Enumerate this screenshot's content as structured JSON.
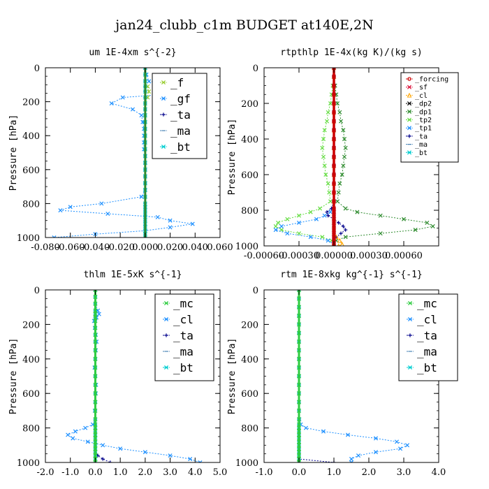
{
  "figure": {
    "suptitle": "jan24_clubb_c1m  BUDGET at140E,2N"
  },
  "chart_data": [
    {
      "type": "line",
      "title": "um  1E-4xm s^{-2}",
      "ylabel": "Pressure [hPa]",
      "xlim": [
        -0.08,
        0.06
      ],
      "ylim": [
        1000,
        0
      ],
      "xticks": [
        -0.08,
        -0.06,
        -0.04,
        -0.02,
        0.0,
        0.02,
        0.04,
        0.06
      ],
      "xticklabels": [
        "-0.080",
        "-0.060",
        "-0.040",
        "-0.020",
        "0.000",
        "0.020",
        "0.040",
        "0.060"
      ],
      "yticks": [
        0,
        200,
        400,
        600,
        800,
        1000
      ],
      "legend": {
        "position": "top-right",
        "size": "large",
        "entries": [
          "_f",
          "_gf",
          "_ta",
          "_ma",
          "_bt"
        ]
      },
      "y": [
        0,
        40,
        80,
        110,
        140,
        175,
        210,
        245,
        280,
        320,
        360,
        400,
        440,
        480,
        520,
        560,
        600,
        640,
        680,
        720,
        760,
        800,
        820,
        840,
        860,
        880,
        900,
        920,
        940,
        960,
        980,
        1000
      ],
      "series": [
        {
          "name": "_f",
          "color": "#9acd32",
          "marker": "x",
          "x": [
            0,
            0,
            0,
            0.002,
            0.003,
            0.002,
            0,
            0,
            0,
            0,
            0,
            0,
            0,
            0,
            0,
            0,
            0,
            0,
            0,
            0,
            0,
            0,
            0,
            0,
            0,
            0,
            0,
            0,
            0,
            0,
            0,
            0
          ]
        },
        {
          "name": "_gf",
          "color": "#1e90ff",
          "marker": "x",
          "x": [
            0,
            0.001,
            0.003,
            0.03,
            0.048,
            -0.018,
            -0.027,
            -0.01,
            -0.003,
            -0.002,
            -0.001,
            -0.001,
            -0.001,
            -0.001,
            0,
            0,
            0,
            0,
            0,
            0,
            -0.003,
            -0.035,
            -0.06,
            -0.068,
            -0.03,
            0.01,
            0.02,
            0.038,
            0.02,
            0.0,
            -0.04,
            -0.073
          ]
        },
        {
          "name": "_ta",
          "color": "#00008b",
          "marker": "+",
          "x": [
            0,
            0,
            0,
            0,
            0,
            0,
            0,
            0,
            0,
            0,
            0,
            0,
            0,
            0,
            0,
            0,
            0,
            0,
            0,
            0,
            0,
            0,
            0,
            0,
            0,
            0,
            0,
            0,
            0,
            0,
            0,
            0
          ]
        },
        {
          "name": "_ma",
          "color": "#4682b4",
          "marker": "-",
          "x": [
            0,
            0,
            0,
            0,
            0,
            0,
            0,
            0,
            0,
            0,
            0,
            0,
            0,
            0,
            0,
            0,
            0,
            0,
            0,
            0,
            0,
            0,
            0,
            0,
            0,
            0,
            0,
            0,
            0,
            0,
            0,
            0
          ]
        },
        {
          "name": "_bt",
          "color": "#00ced1",
          "marker": "*",
          "x": [
            0,
            0,
            0,
            0,
            0,
            0,
            0,
            0,
            0,
            0,
            0,
            0,
            0,
            0,
            0,
            0,
            0,
            0,
            0,
            0,
            0,
            0,
            0,
            0,
            0,
            0,
            0,
            0,
            0,
            0,
            0,
            0
          ]
        },
        {
          "name": "_f",
          "color": "#2e8b2e",
          "marker": "line",
          "x": [
            0,
            0,
            0,
            0,
            0,
            0,
            0,
            0,
            0,
            0,
            0,
            0,
            0,
            0,
            0,
            0,
            0,
            0,
            0,
            0,
            0,
            0,
            0,
            0,
            0,
            0,
            0,
            0,
            0,
            0,
            0,
            0
          ]
        }
      ]
    },
    {
      "type": "line",
      "title": "rtpthlp  1E-4x(kg K)/(kg s)",
      "ylabel": "Pressure [hPa]",
      "xlim": [
        -0.0006,
        0.0009
      ],
      "ylim": [
        1000,
        0
      ],
      "xticks": [
        -0.0006,
        -0.0003,
        0.0,
        0.0003,
        0.0006
      ],
      "xticklabels": [
        "-0.00060",
        "-0.00030",
        "0.00000",
        "0.00030",
        "0.00060"
      ],
      "yticks": [
        0,
        200,
        400,
        600,
        800,
        1000
      ],
      "legend": {
        "position": "top-right",
        "size": "small",
        "entries": [
          "_forcing",
          "_sf",
          "_cl",
          "_dp2",
          "_dp1",
          "_tp2",
          "_tp1",
          "_ta",
          "_ma",
          "_bt"
        ]
      },
      "y": [
        0,
        50,
        100,
        150,
        200,
        250,
        300,
        350,
        400,
        450,
        500,
        550,
        600,
        650,
        700,
        750,
        790,
        810,
        830,
        850,
        870,
        890,
        910,
        930,
        950,
        970,
        990,
        1000
      ],
      "series": [
        {
          "name": "_dp1",
          "color": "#2e8b2e",
          "marker": "x",
          "x": [
            0,
            0,
            1e-05,
            2e-05,
            3e-05,
            5e-05,
            6e-05,
            8e-05,
            9e-05,
            0.0001,
            9e-05,
            8e-05,
            7e-05,
            5e-05,
            4e-05,
            3e-05,
            0.0001,
            0.0002,
            0.0004,
            0.0006,
            0.0008,
            0.00085,
            0.0007,
            0.0004,
            0.0001,
            2e-05,
            0,
            0
          ]
        },
        {
          "name": "_tp2",
          "color": "#66dd44",
          "marker": "x",
          "x": [
            0,
            0,
            -1e-05,
            -2e-05,
            -3e-05,
            -5e-05,
            -6e-05,
            -8e-05,
            -9e-05,
            -0.0001,
            -9e-05,
            -8e-05,
            -7e-05,
            -5e-05,
            -4e-05,
            -3e-05,
            -0.00012,
            -0.0002,
            -0.0003,
            -0.0004,
            -0.00048,
            -0.0005,
            -0.00045,
            -0.0003,
            -0.0001,
            -2e-05,
            0,
            0
          ]
        },
        {
          "name": "_tp1",
          "color": "#1e90ff",
          "marker": "x",
          "x": [
            0,
            0,
            0,
            0,
            0,
            0,
            0,
            0,
            0,
            0,
            0,
            0,
            0,
            0,
            0,
            0,
            -1e-05,
            -3e-05,
            -8e-05,
            -0.00015,
            -0.0003,
            -0.00045,
            -0.0005,
            -0.0004,
            -0.0002,
            -5e-05,
            0,
            0
          ]
        },
        {
          "name": "_ta",
          "color": "#00008b",
          "marker": "+",
          "x": [
            0,
            0,
            0,
            0,
            0,
            0,
            0,
            0,
            0,
            0,
            0,
            0,
            0,
            0,
            0,
            0,
            -2e-05,
            -6e-05,
            -5e-05,
            0,
            4e-05,
            8e-05,
            0.0001,
            6e-05,
            2e-05,
            0,
            0,
            0
          ]
        },
        {
          "name": "_cl",
          "color": "#ffa500",
          "marker": "^",
          "x": [
            0,
            0,
            0,
            0,
            0,
            0,
            0,
            0,
            0,
            0,
            0,
            0,
            0,
            0,
            0,
            0,
            0,
            0,
            0,
            0,
            0,
            0,
            0,
            0,
            2e-05,
            5e-05,
            7e-05,
            4e-05
          ]
        },
        {
          "name": "_bt",
          "color": "#00ced1",
          "marker": "*",
          "x": [
            0,
            0,
            0,
            0,
            0,
            0,
            0,
            0,
            0,
            0,
            0,
            0,
            0,
            0,
            0,
            0,
            0,
            0,
            0,
            0,
            0,
            0,
            0,
            0,
            0,
            0,
            0,
            0
          ]
        },
        {
          "name": "_ma",
          "color": "#4682b4",
          "marker": "-",
          "x": [
            0,
            0,
            0,
            0,
            0,
            0,
            0,
            0,
            0,
            0,
            0,
            0,
            0,
            0,
            0,
            0,
            0,
            0,
            0,
            0,
            0,
            0,
            0,
            0,
            0,
            0,
            0,
            0
          ]
        },
        {
          "name": "_sf",
          "color": "#dc143c",
          "marker": "x",
          "x": [
            0,
            0,
            0,
            0,
            0,
            0,
            0,
            0,
            0,
            0,
            0,
            0,
            0,
            0,
            0,
            0,
            0,
            0,
            0,
            0,
            0,
            0,
            0,
            0,
            0,
            0,
            0,
            0
          ]
        },
        {
          "name": "_forcing",
          "color": "#cc0000",
          "marker": "o",
          "x": [
            0,
            0,
            0,
            0,
            0,
            0,
            0,
            0,
            0,
            0,
            0,
            0,
            0,
            0,
            0,
            0,
            0,
            0,
            0,
            0,
            0,
            0,
            0,
            0,
            0,
            0,
            0,
            0
          ]
        }
      ]
    },
    {
      "type": "line",
      "title": "thlm  1E-5xK s^{-1}",
      "ylabel": "Pressure [hPa]",
      "xlim": [
        -2.0,
        5.0
      ],
      "ylim": [
        1000,
        0
      ],
      "xticks": [
        -2.0,
        -1.0,
        0.0,
        1.0,
        2.0,
        3.0,
        4.0,
        5.0
      ],
      "xticklabels": [
        "-2.0",
        "-1.0",
        "0.0",
        "1.0",
        "2.0",
        "3.0",
        "4.0",
        "5.0"
      ],
      "yticks": [
        0,
        200,
        400,
        600,
        800,
        1000
      ],
      "legend": {
        "position": "top-right",
        "size": "large",
        "entries": [
          "_mc",
          "_cl",
          "_ta",
          "_ma",
          "_bt"
        ]
      },
      "y": [
        0,
        40,
        80,
        120,
        140,
        160,
        180,
        220,
        260,
        300,
        350,
        400,
        450,
        500,
        550,
        600,
        650,
        700,
        750,
        780,
        800,
        820,
        840,
        860,
        880,
        900,
        920,
        940,
        960,
        980,
        1000
      ],
      "series": [
        {
          "name": "_cl",
          "color": "#1e90ff",
          "marker": "x",
          "x": [
            0,
            0,
            0,
            0.1,
            0.15,
            0.05,
            -0.05,
            -0.02,
            0.02,
            0.05,
            0.02,
            0,
            -0.03,
            0,
            0.03,
            0.02,
            0,
            -0.02,
            0,
            -0.1,
            -0.4,
            -0.8,
            -1.1,
            -0.9,
            -0.3,
            0.3,
            1.0,
            2.0,
            3.0,
            3.8,
            4.2
          ]
        },
        {
          "name": "_ta",
          "color": "#00008b",
          "marker": "+",
          "x": [
            0,
            0,
            0,
            0,
            0,
            0,
            0,
            0,
            0,
            0,
            0,
            0,
            0,
            0,
            0,
            0,
            0,
            0,
            0,
            0,
            0,
            0,
            0,
            0,
            0,
            0,
            0,
            0,
            0.1,
            0.3,
            0.6
          ]
        },
        {
          "name": "_ma",
          "color": "#4682b4",
          "marker": "-",
          "x": [
            0,
            0,
            0,
            0,
            0,
            0,
            0,
            0,
            0,
            0,
            0,
            0,
            0,
            0,
            0,
            0,
            0,
            0,
            0,
            0,
            0,
            0,
            0,
            0,
            0,
            0,
            0,
            0,
            0,
            0,
            0
          ]
        },
        {
          "name": "_bt",
          "color": "#00ced1",
          "marker": "*",
          "x": [
            0,
            0,
            0,
            0,
            0,
            0,
            0,
            0,
            0,
            0,
            0,
            0,
            0,
            0,
            0,
            0,
            0,
            0,
            0,
            0,
            0,
            0,
            0,
            0,
            0,
            0,
            0,
            0,
            0,
            0,
            0
          ]
        },
        {
          "name": "_mc",
          "color": "#2ecc40",
          "marker": "x",
          "x": [
            0,
            0,
            0,
            0,
            0,
            0,
            0,
            0,
            0,
            0,
            0,
            0,
            0,
            0,
            0,
            0,
            0,
            0,
            0,
            0,
            0,
            0,
            0,
            0,
            0,
            0,
            0,
            0,
            0,
            0,
            0
          ]
        }
      ]
    },
    {
      "type": "line",
      "title": "rtm  1E-8xkg kg^{-1} s^{-1}",
      "ylabel": "Pressure [hPa]",
      "xlim": [
        -1.0,
        4.0
      ],
      "ylim": [
        1000,
        0
      ],
      "xticks": [
        -1.0,
        0.0,
        1.0,
        2.0,
        3.0,
        4.0
      ],
      "xticklabels": [
        "-1.0",
        "0.0",
        "1.0",
        "2.0",
        "3.0",
        "4.0"
      ],
      "yticks": [
        0,
        200,
        400,
        600,
        800,
        1000
      ],
      "legend": {
        "position": "top-right",
        "size": "large",
        "entries": [
          "_mc",
          "_cl",
          "_ta",
          "_ma",
          "_bt"
        ]
      },
      "y": [
        0,
        50,
        100,
        150,
        200,
        250,
        300,
        350,
        400,
        450,
        500,
        550,
        600,
        650,
        700,
        750,
        780,
        800,
        820,
        840,
        860,
        880,
        900,
        920,
        940,
        960,
        980,
        1000
      ],
      "series": [
        {
          "name": "_cl",
          "color": "#1e90ff",
          "marker": "x",
          "x": [
            0,
            0,
            0,
            0,
            0,
            0,
            0,
            0,
            0,
            0,
            0,
            0,
            0,
            0,
            0,
            0.01,
            0.05,
            0.2,
            0.7,
            1.4,
            2.2,
            2.8,
            3.1,
            2.9,
            2.2,
            1.7,
            1.5,
            1.5
          ]
        },
        {
          "name": "_ta",
          "color": "#00008b",
          "marker": "+",
          "x": [
            0,
            0,
            0,
            0,
            0,
            0,
            0,
            0,
            0,
            0,
            0,
            0,
            0,
            0,
            0,
            0,
            0,
            0,
            0,
            0,
            0,
            0,
            0,
            0,
            0,
            0,
            0,
            1.0
          ]
        },
        {
          "name": "_ma",
          "color": "#4682b4",
          "marker": "-",
          "x": [
            0,
            0,
            0,
            0,
            0,
            0,
            0,
            0,
            0,
            0,
            0,
            0,
            0,
            0,
            0,
            0,
            0,
            0,
            0,
            0,
            0,
            0,
            0,
            0,
            0,
            0,
            0,
            0
          ]
        },
        {
          "name": "_bt",
          "color": "#00ced1",
          "marker": "*",
          "x": [
            0,
            0,
            0,
            0,
            0,
            0,
            0,
            0,
            0,
            0,
            0,
            0,
            0,
            0,
            0,
            0,
            0,
            0,
            0,
            0,
            0,
            0,
            0,
            0,
            0,
            0,
            0,
            0
          ]
        },
        {
          "name": "_mc",
          "color": "#2ecc40",
          "marker": "x",
          "x": [
            0,
            0,
            0,
            0,
            0,
            0,
            0,
            0,
            0,
            0,
            0,
            0,
            0,
            0,
            0,
            0,
            0,
            0,
            0,
            0,
            0,
            0,
            0,
            0,
            0,
            0,
            0,
            0
          ]
        }
      ]
    }
  ]
}
